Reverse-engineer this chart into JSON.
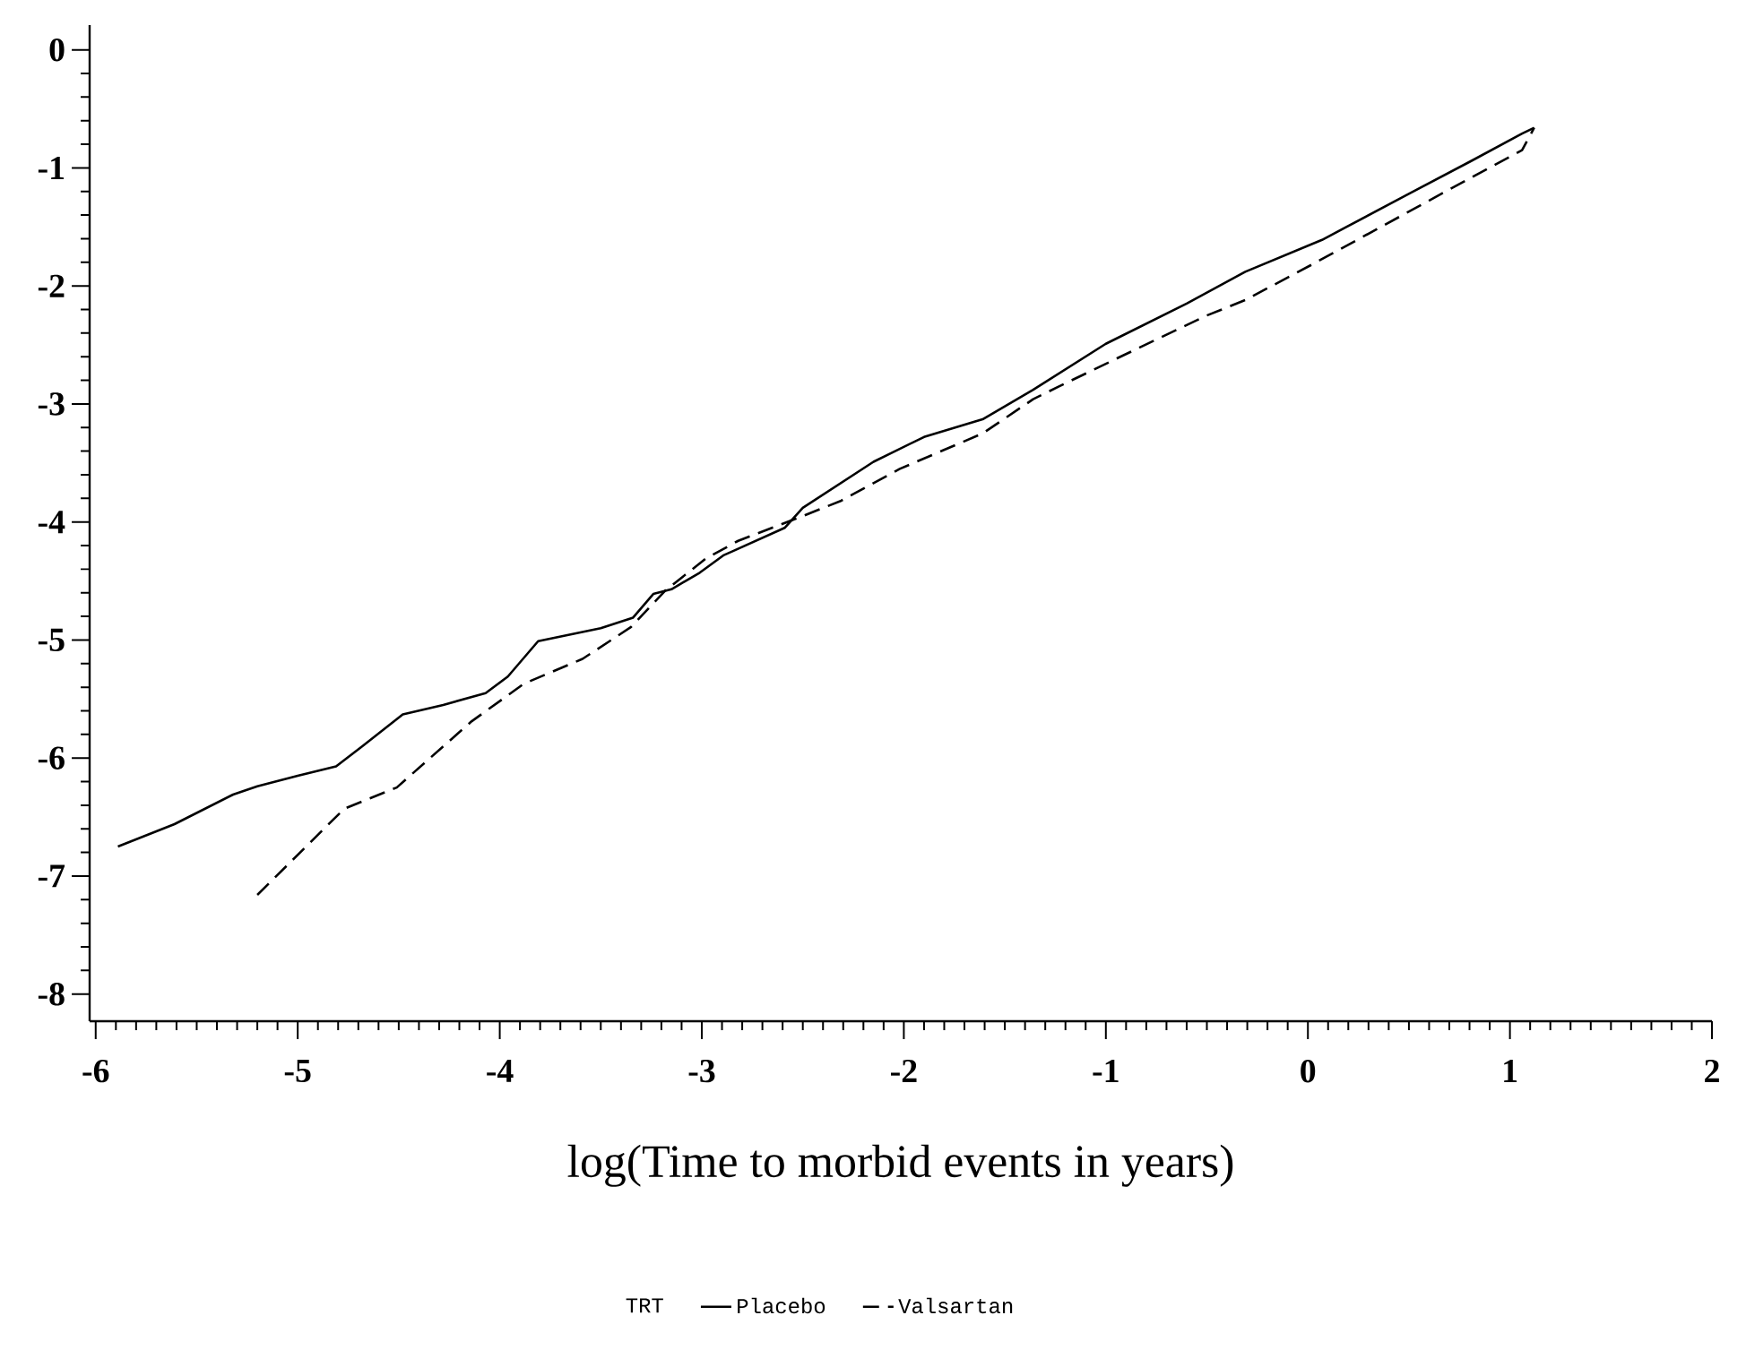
{
  "chart_data": {
    "type": "line",
    "xlabel": "log(Time to morbid events in years)",
    "legend_title": "TRT",
    "legend": "bottom",
    "xlim": [
      -6.03,
      2
    ],
    "ylim": [
      -8.23,
      0.21
    ],
    "xticks": [
      -6,
      -5,
      -4,
      -3,
      -2,
      -1,
      0,
      1,
      2
    ],
    "yticks": [
      -8,
      -7,
      -6,
      -5,
      -4,
      -3,
      -2,
      -1,
      0
    ],
    "grid": false,
    "marker": "none",
    "series": [
      {
        "name": "Placebo",
        "color": "#000000",
        "line_style": "solid",
        "x": [
          -5.89,
          -5.61,
          -5.32,
          -5.2,
          -5.0,
          -4.81,
          -4.68,
          -4.48,
          -4.28,
          -4.07,
          -3.96,
          -3.81,
          -3.5,
          -3.34,
          -3.24,
          -3.15,
          -3.01,
          -2.89,
          -2.85,
          -2.59,
          -2.5,
          -2.15,
          -1.9,
          -1.61,
          -1.36,
          -1.0,
          -0.6,
          -0.31,
          0.07,
          0.51,
          0.81,
          1.06,
          1.12
        ],
        "values": [
          -6.75,
          -6.56,
          -6.31,
          -6.24,
          -6.15,
          -6.07,
          -5.9,
          -5.63,
          -5.55,
          -5.45,
          -5.31,
          -5.01,
          -4.9,
          -4.81,
          -4.61,
          -4.57,
          -4.43,
          -4.28,
          -4.25,
          -4.05,
          -3.88,
          -3.49,
          -3.28,
          -3.13,
          -2.88,
          -2.49,
          -2.15,
          -1.88,
          -1.61,
          -1.21,
          -0.94,
          -0.71,
          -0.66
        ]
      },
      {
        "name": "Valsartan",
        "color": "#000000",
        "line_style": "dashed",
        "x": [
          -5.2,
          -4.77,
          -4.51,
          -4.14,
          -3.88,
          -3.59,
          -3.35,
          -3.18,
          -2.98,
          -2.82,
          -2.5,
          -2.31,
          -2.02,
          -1.61,
          -1.36,
          -1.23,
          -0.94,
          -0.5,
          -0.31,
          0.03,
          0.49,
          0.81,
          1.06,
          1.12
        ],
        "values": [
          -7.16,
          -6.43,
          -6.25,
          -5.69,
          -5.37,
          -5.16,
          -4.89,
          -4.58,
          -4.31,
          -4.16,
          -3.95,
          -3.82,
          -3.55,
          -3.25,
          -2.96,
          -2.85,
          -2.61,
          -2.25,
          -2.12,
          -1.81,
          -1.38,
          -1.08,
          -0.85,
          -0.66
        ]
      }
    ]
  }
}
